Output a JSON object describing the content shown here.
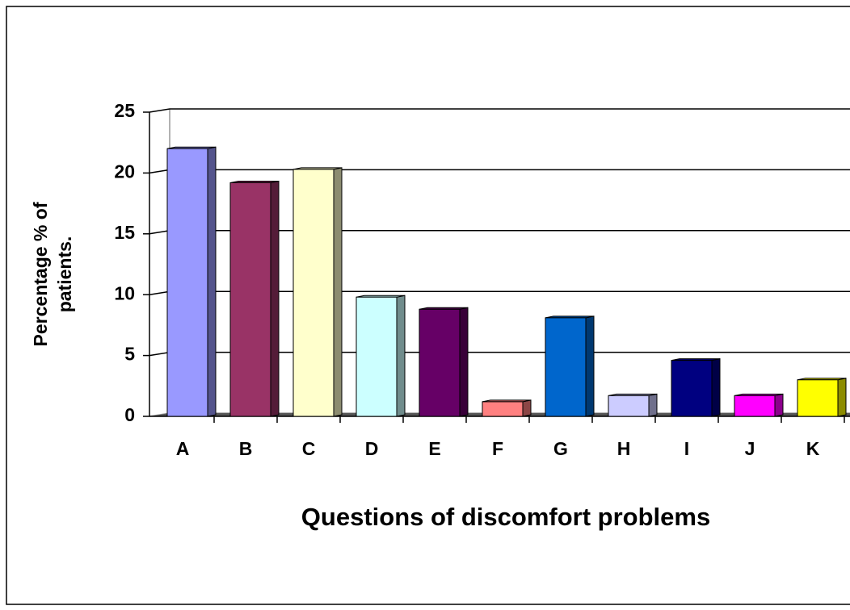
{
  "chart_data": {
    "type": "bar3d",
    "xlabel": "Questions of discomfort problems",
    "ylabel": [
      "Percentage % of",
      "patients."
    ],
    "categories": [
      "A",
      "B",
      "C",
      "D",
      "E",
      "F",
      "G",
      "H",
      "I",
      "J",
      "K"
    ],
    "values": [
      22,
      19.2,
      20.3,
      9.8,
      8.8,
      1.2,
      8.1,
      1.7,
      4.6,
      1.7,
      3
    ],
    "colors": [
      "#9999ff",
      "#993366",
      "#ffffcc",
      "#ccffff",
      "#660066",
      "#ff8080",
      "#0066cc",
      "#ccccff",
      "#000080",
      "#ff00ff",
      "#ffff00"
    ],
    "ylim": [
      0,
      25
    ],
    "yticks": [
      0,
      5,
      10,
      15,
      20,
      25
    ],
    "grid": true
  }
}
